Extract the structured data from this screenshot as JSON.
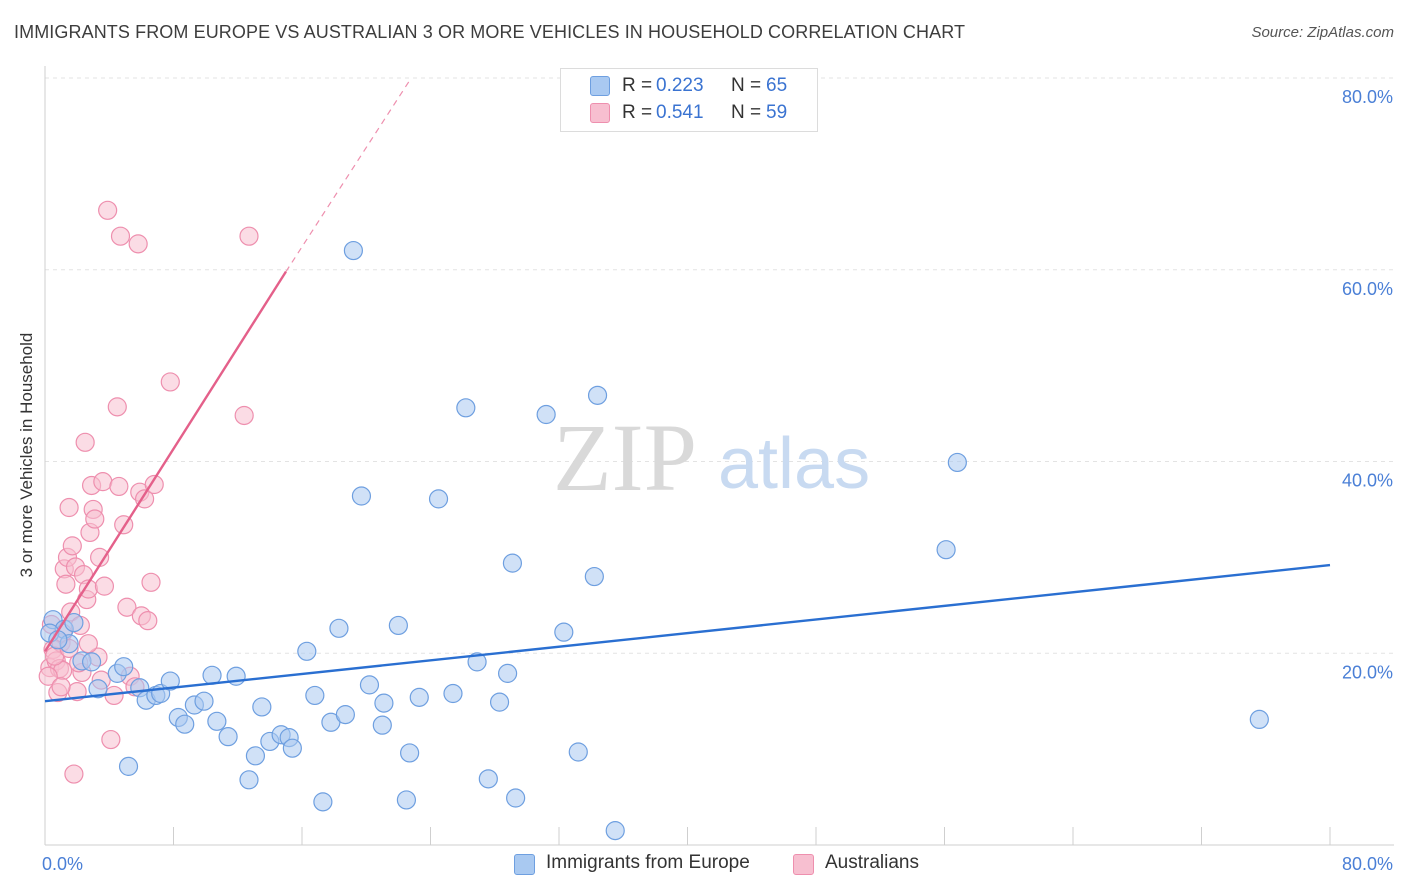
{
  "header": {
    "title": "IMMIGRANTS FROM EUROPE VS AUSTRALIAN 3 OR MORE VEHICLES IN HOUSEHOLD CORRELATION CHART",
    "source": "Source: ZipAtlas.com"
  },
  "watermark": {
    "zip": "ZIP",
    "atlas": "atlas"
  },
  "stats": {
    "europe": {
      "r_label": "R =",
      "r_value": "0.223",
      "n_label": "N =",
      "n_value": "65"
    },
    "australians": {
      "r_label": "R =",
      "r_value": "0.541",
      "n_label": "N =",
      "n_value": "59"
    }
  },
  "legend": {
    "europe": "Immigrants from Europe",
    "australians": "Australians"
  },
  "colors": {
    "europe_fill": "#a9c9f1",
    "europe_stroke": "#6e9fe0",
    "europe_line": "#2a6fd1",
    "aus_fill": "#f7bfd0",
    "aus_stroke": "#ee8fae",
    "aus_line": "#e4608a",
    "grid": "#e3e3e3",
    "axis_text": "#4a7fd6"
  },
  "chart_data": {
    "type": "scatter",
    "title": "IMMIGRANTS FROM EUROPE VS AUSTRALIAN 3 OR MORE VEHICLES IN HOUSEHOLD CORRELATION CHART",
    "xlabel": "",
    "ylabel": "3 or more Vehicles in Household",
    "xlim": [
      0,
      80
    ],
    "ylim": [
      0,
      80
    ],
    "x_tick_labels": [
      "0.0%",
      "80.0%"
    ],
    "y_ticks": [
      20,
      40,
      60,
      80
    ],
    "y_tick_labels": [
      "20.0%",
      "40.0%",
      "60.0%",
      "80.0%"
    ],
    "grid": true,
    "series": [
      {
        "name": "Immigrants from Europe",
        "r": 0.223,
        "n": 65,
        "trend": {
          "x0": 0,
          "y0": 15.0,
          "x1": 80,
          "y1": 29.2,
          "dashed_to": null
        },
        "points": [
          [
            0.5,
            23.5
          ],
          [
            1.2,
            22.5
          ],
          [
            1.5,
            21.0
          ],
          [
            1.8,
            23.2
          ],
          [
            2.3,
            19.2
          ],
          [
            2.9,
            19.1
          ],
          [
            3.3,
            16.3
          ],
          [
            4.5,
            17.9
          ],
          [
            4.9,
            18.6
          ],
          [
            5.2,
            8.2
          ],
          [
            5.9,
            16.4
          ],
          [
            6.3,
            15.1
          ],
          [
            6.9,
            15.6
          ],
          [
            7.2,
            15.8
          ],
          [
            7.8,
            17.1
          ],
          [
            8.3,
            13.3
          ],
          [
            8.7,
            12.6
          ],
          [
            9.3,
            14.6
          ],
          [
            9.9,
            15.0
          ],
          [
            10.4,
            17.7
          ],
          [
            10.7,
            12.9
          ],
          [
            11.4,
            11.3
          ],
          [
            11.9,
            17.6
          ],
          [
            12.7,
            6.8
          ],
          [
            13.1,
            9.3
          ],
          [
            13.5,
            14.4
          ],
          [
            14.0,
            10.8
          ],
          [
            14.7,
            11.5
          ],
          [
            15.2,
            11.2
          ],
          [
            15.4,
            10.1
          ],
          [
            16.3,
            20.2
          ],
          [
            16.8,
            15.6
          ],
          [
            17.3,
            4.5
          ],
          [
            17.8,
            12.8
          ],
          [
            18.3,
            22.6
          ],
          [
            18.7,
            13.6
          ],
          [
            19.2,
            62.0
          ],
          [
            19.7,
            36.4
          ],
          [
            20.2,
            16.7
          ],
          [
            21.0,
            12.5
          ],
          [
            21.1,
            14.8
          ],
          [
            22.0,
            22.9
          ],
          [
            22.5,
            4.7
          ],
          [
            22.7,
            9.6
          ],
          [
            23.3,
            15.4
          ],
          [
            24.5,
            36.1
          ],
          [
            25.4,
            15.8
          ],
          [
            26.2,
            45.6
          ],
          [
            26.9,
            19.1
          ],
          [
            27.6,
            6.9
          ],
          [
            28.3,
            14.9
          ],
          [
            28.8,
            17.9
          ],
          [
            29.1,
            29.4
          ],
          [
            29.3,
            4.9
          ],
          [
            31.2,
            44.9
          ],
          [
            32.3,
            22.2
          ],
          [
            33.2,
            9.7
          ],
          [
            34.2,
            28.0
          ],
          [
            34.4,
            46.9
          ],
          [
            35.5,
            1.5
          ],
          [
            56.1,
            30.8
          ],
          [
            56.8,
            39.9
          ],
          [
            75.6,
            13.1
          ],
          [
            0.3,
            22.1
          ],
          [
            0.8,
            21.4
          ]
        ]
      },
      {
        "name": "Australians",
        "r": 0.541,
        "n": 59,
        "trend": {
          "x0": 0,
          "y0": 20.2,
          "x1": 15.0,
          "y1": 59.8,
          "dashed_to": [
            22.8,
            80.0
          ]
        },
        "points": [
          [
            0.3,
            18.5
          ],
          [
            0.5,
            20.4
          ],
          [
            0.7,
            19.2
          ],
          [
            0.8,
            15.9
          ],
          [
            0.9,
            18.4
          ],
          [
            1.0,
            21.1
          ],
          [
            1.1,
            22.1
          ],
          [
            1.1,
            18.2
          ],
          [
            1.2,
            28.8
          ],
          [
            1.3,
            27.2
          ],
          [
            1.4,
            30.0
          ],
          [
            1.5,
            35.2
          ],
          [
            1.6,
            24.3
          ],
          [
            1.7,
            31.2
          ],
          [
            1.8,
            7.4
          ],
          [
            1.9,
            29.0
          ],
          [
            2.0,
            16.0
          ],
          [
            2.2,
            22.9
          ],
          [
            2.3,
            18.0
          ],
          [
            2.4,
            28.2
          ],
          [
            2.5,
            42.0
          ],
          [
            2.6,
            25.6
          ],
          [
            2.7,
            26.7
          ],
          [
            2.8,
            32.6
          ],
          [
            2.9,
            37.5
          ],
          [
            3.0,
            35.0
          ],
          [
            3.1,
            34.0
          ],
          [
            3.3,
            19.6
          ],
          [
            3.4,
            30.0
          ],
          [
            3.5,
            17.2
          ],
          [
            3.6,
            37.9
          ],
          [
            3.7,
            27.0
          ],
          [
            3.9,
            66.2
          ],
          [
            4.1,
            11.0
          ],
          [
            4.3,
            15.6
          ],
          [
            4.5,
            45.7
          ],
          [
            4.6,
            37.4
          ],
          [
            4.7,
            63.5
          ],
          [
            4.9,
            33.4
          ],
          [
            5.1,
            24.8
          ],
          [
            5.3,
            17.6
          ],
          [
            5.6,
            16.5
          ],
          [
            5.8,
            62.7
          ],
          [
            5.9,
            36.8
          ],
          [
            6.0,
            23.9
          ],
          [
            6.2,
            36.1
          ],
          [
            6.4,
            23.4
          ],
          [
            6.6,
            27.4
          ],
          [
            6.8,
            37.6
          ],
          [
            7.8,
            48.3
          ],
          [
            12.4,
            44.8
          ],
          [
            12.7,
            63.5
          ],
          [
            0.2,
            17.6
          ],
          [
            0.6,
            19.7
          ],
          [
            1.0,
            16.5
          ],
          [
            2.1,
            19.0
          ],
          [
            2.7,
            21.0
          ],
          [
            0.4,
            23.0
          ],
          [
            1.5,
            20.5
          ]
        ]
      }
    ]
  }
}
